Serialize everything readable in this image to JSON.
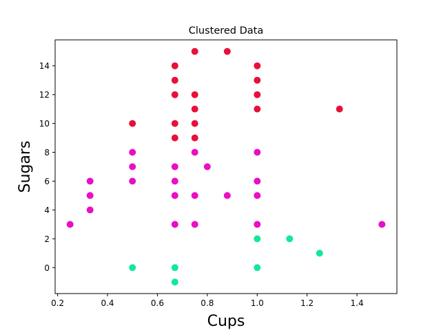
{
  "chart_data": {
    "type": "scatter",
    "title": "Clustered Data",
    "xlabel": "Cups",
    "ylabel": "Sugars",
    "xlim": [
      0.19,
      1.56
    ],
    "ylim": [
      -1.8,
      15.8
    ],
    "x_ticks": [
      0.2,
      0.4,
      0.6,
      0.8,
      1.0,
      1.2,
      1.4
    ],
    "x_tick_labels": [
      "0.2",
      "0.4",
      "0.6",
      "0.8",
      "1.0",
      "1.2",
      "1.4"
    ],
    "y_ticks": [
      0,
      2,
      4,
      6,
      8,
      10,
      12,
      14
    ],
    "y_tick_labels": [
      "0",
      "2",
      "4",
      "6",
      "8",
      "10",
      "12",
      "14"
    ],
    "grid": false,
    "colors": {
      "cluster_0": "#e8103a",
      "cluster_1": "#e80fc4",
      "cluster_2": "#12e89a"
    },
    "series": [
      {
        "cluster": "cluster_0",
        "points": [
          [
            0.5,
            10
          ],
          [
            0.67,
            14
          ],
          [
            0.67,
            13
          ],
          [
            0.67,
            12
          ],
          [
            0.67,
            10
          ],
          [
            0.67,
            9
          ],
          [
            0.75,
            15
          ],
          [
            0.75,
            12
          ],
          [
            0.75,
            11
          ],
          [
            0.75,
            10
          ],
          [
            0.75,
            9
          ],
          [
            0.88,
            15
          ],
          [
            1.0,
            14
          ],
          [
            1.0,
            13
          ],
          [
            1.0,
            12
          ],
          [
            1.0,
            11
          ],
          [
            1.33,
            11
          ]
        ]
      },
      {
        "cluster": "cluster_1",
        "points": [
          [
            0.25,
            3
          ],
          [
            0.33,
            6
          ],
          [
            0.33,
            5
          ],
          [
            0.33,
            4
          ],
          [
            0.5,
            8
          ],
          [
            0.5,
            7
          ],
          [
            0.5,
            6
          ],
          [
            0.67,
            7
          ],
          [
            0.67,
            6
          ],
          [
            0.67,
            5
          ],
          [
            0.67,
            3
          ],
          [
            0.75,
            8
          ],
          [
            0.75,
            5
          ],
          [
            0.75,
            3
          ],
          [
            0.8,
            7
          ],
          [
            0.88,
            5
          ],
          [
            1.0,
            8
          ],
          [
            1.0,
            6
          ],
          [
            1.0,
            5
          ],
          [
            1.0,
            3
          ],
          [
            1.5,
            3
          ]
        ]
      },
      {
        "cluster": "cluster_2",
        "points": [
          [
            0.5,
            0
          ],
          [
            0.67,
            0
          ],
          [
            0.67,
            -1
          ],
          [
            1.0,
            2
          ],
          [
            1.0,
            0
          ],
          [
            1.13,
            2
          ],
          [
            1.25,
            1
          ]
        ]
      }
    ]
  }
}
